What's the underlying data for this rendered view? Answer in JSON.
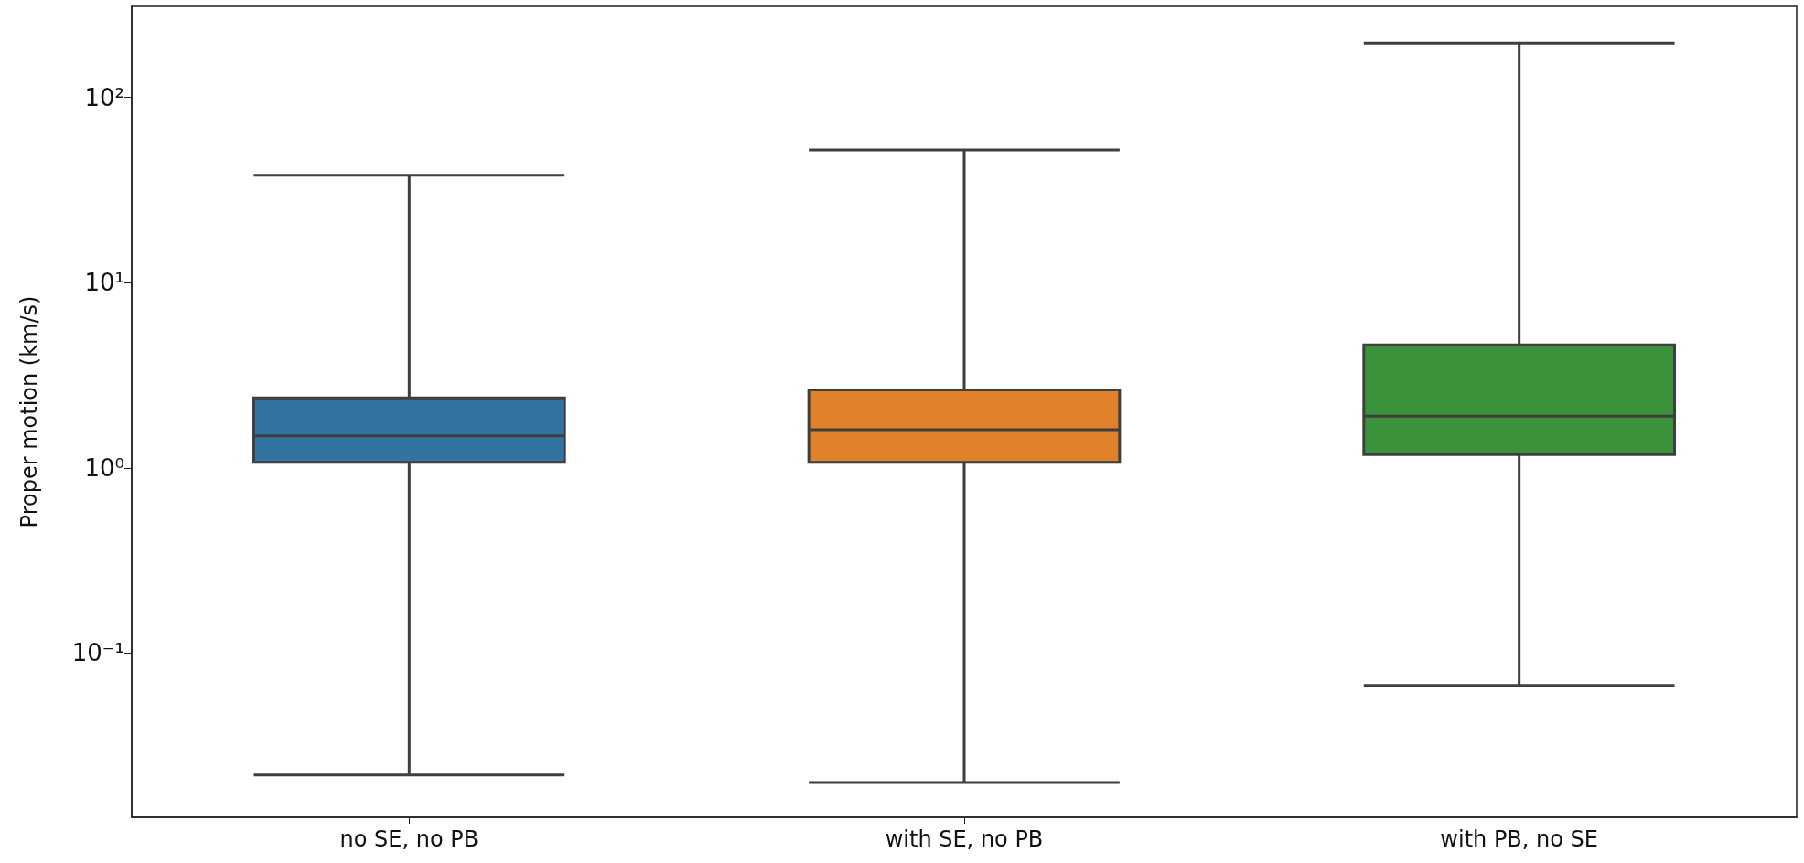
{
  "chart_data": {
    "type": "box",
    "ylabel": "Proper motion (km/s)",
    "categories": [
      "no SE, no PB",
      "with SE, no PB",
      "with PB, no SE"
    ],
    "colors": [
      "#3274a1",
      "#e1812c",
      "#3a923a"
    ],
    "boxes": [
      {
        "low": 0.022,
        "q1": 1.07,
        "median": 1.49,
        "q3": 2.39,
        "high": 38
      },
      {
        "low": 0.02,
        "q1": 1.07,
        "median": 1.61,
        "q3": 2.64,
        "high": 52
      },
      {
        "low": 0.067,
        "q1": 1.18,
        "median": 1.9,
        "q3": 4.62,
        "high": 196
      }
    ],
    "log": "y",
    "ylim": [
      0.013,
      310
    ],
    "yticks": [
      {
        "value": 0.1,
        "label": "10⁻¹"
      },
      {
        "value": 1,
        "label": "10⁰"
      },
      {
        "value": 10,
        "label": "10¹"
      },
      {
        "value": 100,
        "label": "10²"
      }
    ],
    "grid": false
  }
}
